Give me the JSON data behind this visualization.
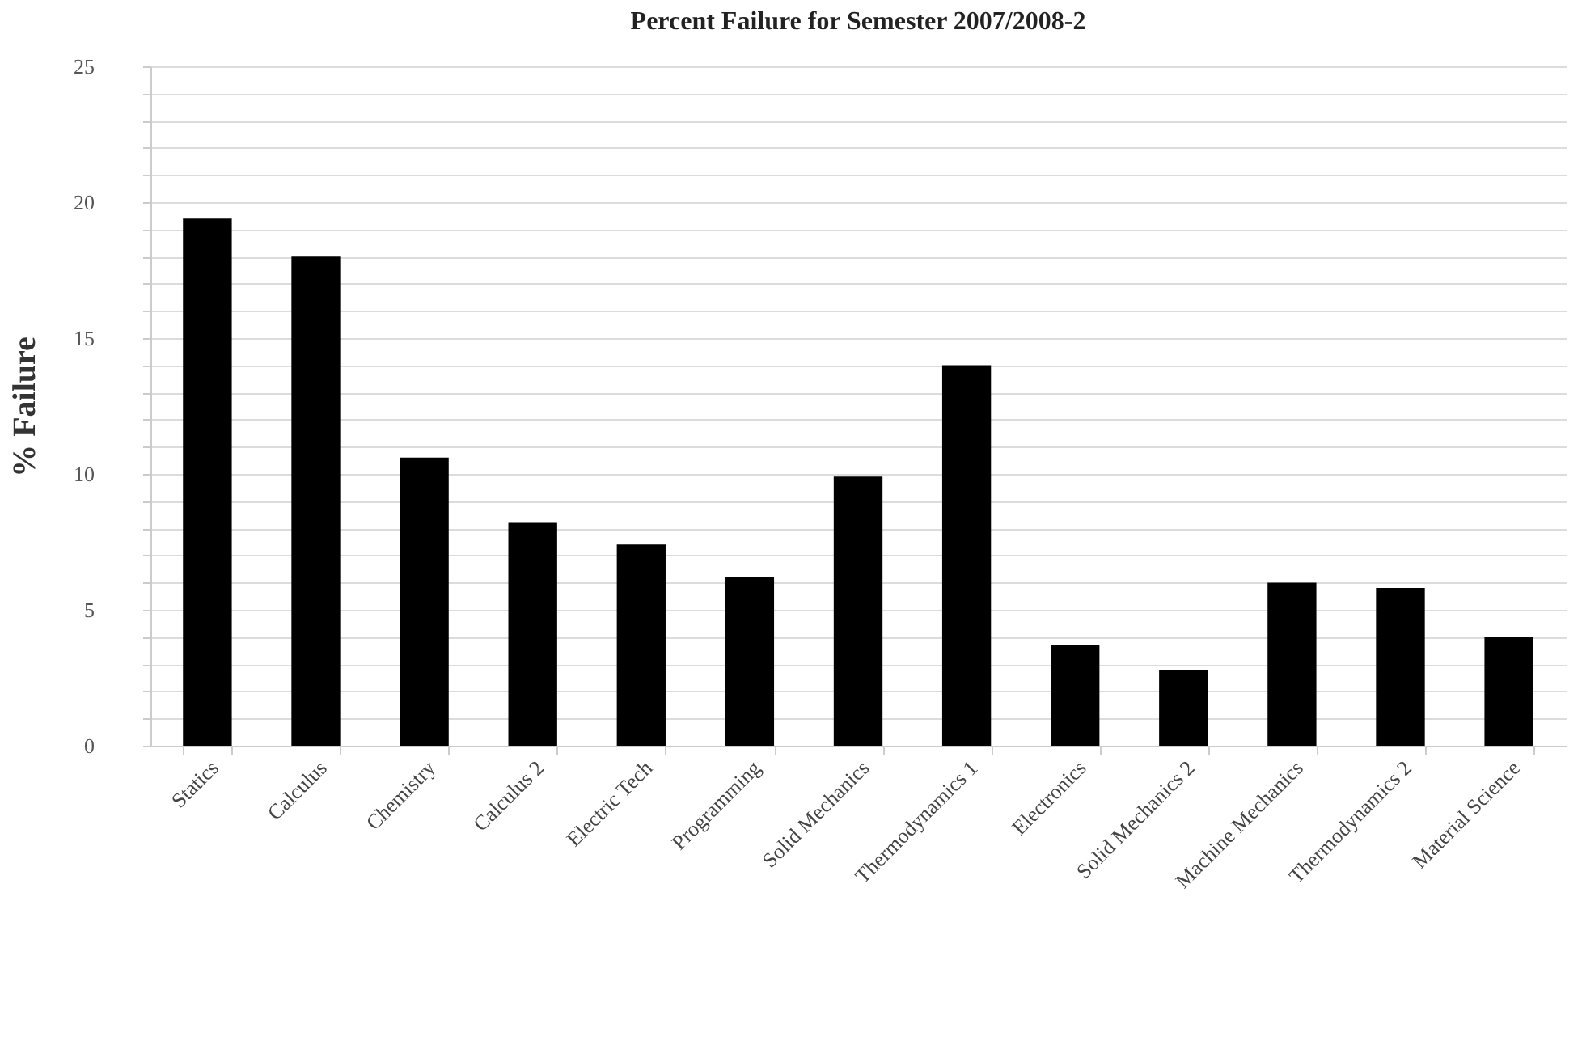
{
  "chart_data": {
    "type": "bar",
    "title": "Percent Failure for Semester 2007/2008-2",
    "ylabel": "% Failure",
    "categories": [
      "Statics",
      "Calculus",
      "Chemistry",
      "Calculus 2",
      "Electric Tech",
      "Programming",
      "Solid Mechanics",
      "Thermodynamics 1",
      "Electronics",
      "Solid Mechanics 2",
      "Machine Mechanics",
      "Thermodynamics 2",
      "Material Science"
    ],
    "values": [
      19.4,
      18.0,
      10.6,
      8.2,
      7.4,
      6.2,
      9.9,
      14.0,
      3.7,
      2.8,
      6.0,
      5.8,
      4.0
    ],
    "color": "#000000",
    "ylim": [
      0,
      25
    ],
    "yticks": [
      0,
      {
        "value": 1,
        "label": null
      },
      {
        "value": 2,
        "label": null
      },
      {
        "value": 3,
        "label": null
      },
      {
        "value": 4,
        "label": null
      },
      5,
      {
        "value": 6,
        "label": null
      },
      {
        "value": 7,
        "label": null
      },
      {
        "value": 8,
        "label": null
      },
      {
        "value": 9,
        "label": null
      },
      10,
      {
        "value": 11,
        "label": null
      },
      {
        "value": 12,
        "label": null
      },
      {
        "value": 13,
        "label": null
      },
      {
        "value": 14,
        "label": null
      },
      15,
      {
        "value": 16,
        "label": null
      },
      {
        "value": 17,
        "label": null
      },
      {
        "value": 18,
        "label": null
      },
      {
        "value": 19,
        "label": null
      },
      20,
      {
        "value": 21,
        "label": null
      },
      {
        "value": 22,
        "label": null
      },
      {
        "value": 23,
        "label": null
      },
      {
        "value": 24,
        "label": null
      },
      25
    ],
    "grid": true
  }
}
